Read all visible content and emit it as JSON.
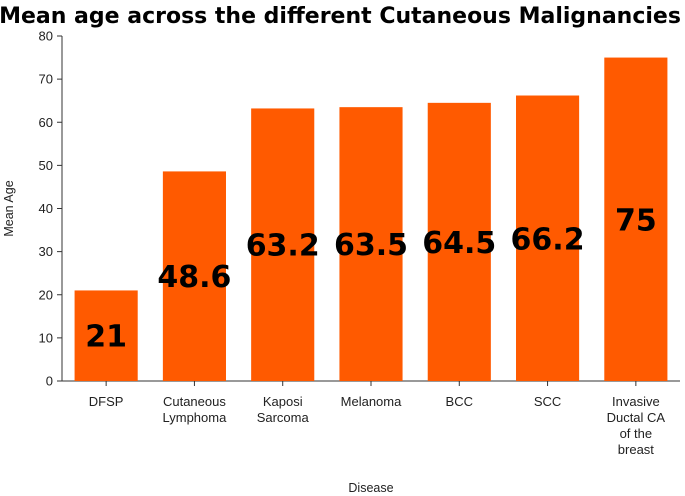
{
  "chart_data": {
    "type": "bar",
    "title": "Mean age across the different Cutaneous Malignancies",
    "xlabel": "Disease",
    "ylabel": "Mean Age",
    "ylim": [
      0,
      80
    ],
    "yticks": [
      0,
      10,
      20,
      30,
      40,
      50,
      60,
      70,
      80
    ],
    "categories": [
      "DFSP",
      "Cutaneous Lymphoma",
      "Kaposi Sarcoma",
      "Melanoma",
      "BCC",
      "SCC",
      "Invasive Ductal CA of the breast"
    ],
    "category_lines": [
      [
        "DFSP"
      ],
      [
        "Cutaneous",
        "Lymphoma"
      ],
      [
        "Kaposi",
        "Sarcoma"
      ],
      [
        "Melanoma"
      ],
      [
        "BCC"
      ],
      [
        "SCC"
      ],
      [
        "Invasive",
        "Ductal CA",
        "of the",
        "breast"
      ]
    ],
    "values": [
      21,
      48.6,
      63.2,
      63.5,
      64.5,
      66.2,
      75
    ],
    "data_labels": [
      "21",
      "48.6",
      "63.2",
      "63.5",
      "64.5",
      "66.2",
      "75"
    ],
    "bar_color": "#ff5a00",
    "grid": false,
    "legend": "none"
  }
}
